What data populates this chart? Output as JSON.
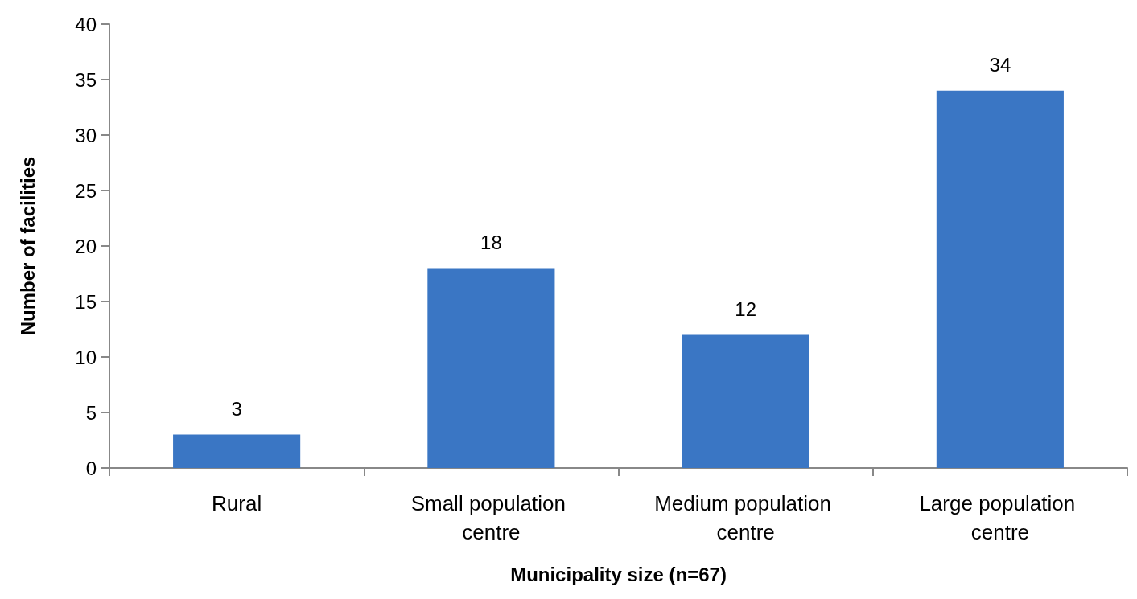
{
  "chart_data": {
    "type": "bar",
    "xlabel": "Municipality size (n=67)",
    "ylabel": "Number of facilities",
    "categories": [
      "Rural",
      "Small population centre",
      "Medium population centre",
      "Large population centre"
    ],
    "values": [
      3,
      18,
      12,
      34
    ],
    "color": "#3a76c4",
    "ylim": [
      0,
      40
    ],
    "yticks": [
      0,
      5,
      10,
      15,
      20,
      25,
      30,
      35,
      40
    ],
    "grid": false,
    "data_labels": true
  }
}
